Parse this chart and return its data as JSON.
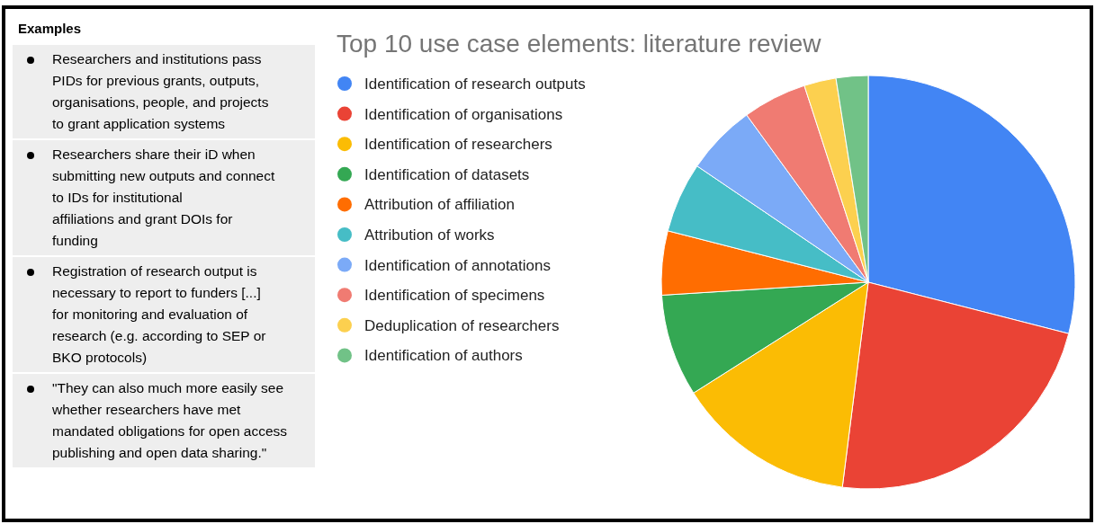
{
  "chart_data": [
    {
      "type": "other",
      "title": "Examples",
      "annotations": [
        "Researchers and institutions pass PIDs for previous grants, outputs, organisations, people, and projects to grant application systems",
        "Researchers share their iD when submitting new outputs and connect to IDs for institutional affiliations and grant DOIs for funding",
        "Registration of research output is necessary to report to funders [...] for monitoring and evaluation of research (e.g. according to SEP or BKO protocols)",
        "\"They can also much more easily see whether researchers have met mandated obligations for open access publishing and open data sharing.\""
      ]
    },
    {
      "type": "pie",
      "title": "Top 10 use case elements: literature review",
      "legend": "left",
      "categories": [
        "Identification of research outputs",
        "Identification of organisations",
        "Identification of researchers",
        "Identification of datasets",
        "Attribution of affiliation",
        "Attribution of works",
        "Identification of annotations",
        "Identification of specimens",
        "Deduplication of researchers",
        "Identification of authors"
      ],
      "values": [
        29,
        23,
        14,
        8,
        5,
        5.5,
        5.5,
        5,
        2.5,
        2.5
      ],
      "colors": [
        "#4285f4",
        "#ea4335",
        "#fbbc04",
        "#34a853",
        "#ff6d01",
        "#46bdc6",
        "#7baaf7",
        "#f07b72",
        "#fcd04f",
        "#71c287"
      ]
    }
  ]
}
